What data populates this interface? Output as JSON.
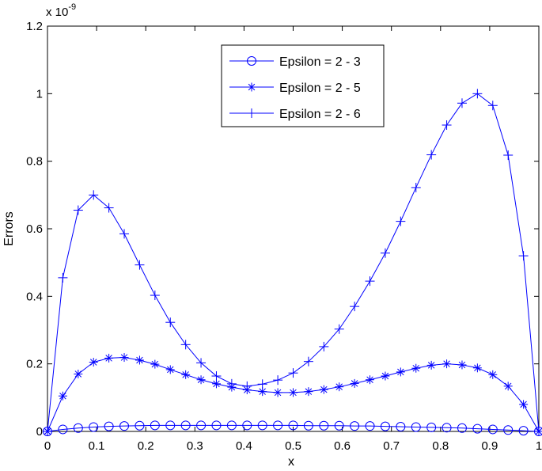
{
  "chart_data": {
    "type": "line",
    "title": "",
    "xlabel": "x",
    "ylabel": "Errors",
    "y_exponent_label": "x 10",
    "y_exponent_power": "-9",
    "xlim": [
      0,
      1
    ],
    "ylim": [
      0,
      1.2
    ],
    "x_ticks": [
      "0",
      "0.1",
      "0.2",
      "0.3",
      "0.4",
      "0.5",
      "0.6",
      "0.7",
      "0.8",
      "0.9",
      "1"
    ],
    "y_ticks": [
      "0",
      "0.2",
      "0.4",
      "0.6",
      "0.8",
      "1",
      "1.2"
    ],
    "legend_position": "top-center",
    "line_color": "#0000ff",
    "x": [
      0,
      0.03125,
      0.0625,
      0.09375,
      0.125,
      0.15625,
      0.1875,
      0.21875,
      0.25,
      0.28125,
      0.3125,
      0.34375,
      0.375,
      0.40625,
      0.4375,
      0.46875,
      0.5,
      0.53125,
      0.5625,
      0.59375,
      0.625,
      0.65625,
      0.6875,
      0.71875,
      0.75,
      0.78125,
      0.8125,
      0.84375,
      0.875,
      0.90625,
      0.9375,
      0.96875,
      1
    ],
    "series": [
      {
        "name": "Epsilon = 2 - 3",
        "marker": "circle",
        "values": [
          0,
          0.006,
          0.01,
          0.013,
          0.015,
          0.016,
          0.017,
          0.018,
          0.018,
          0.018,
          0.018,
          0.018,
          0.018,
          0.018,
          0.018,
          0.018,
          0.018,
          0.017,
          0.017,
          0.017,
          0.016,
          0.016,
          0.015,
          0.014,
          0.013,
          0.012,
          0.011,
          0.01,
          0.008,
          0.006,
          0.004,
          0.002,
          0
        ]
      },
      {
        "name": "Epsilon = 2 - 5",
        "marker": "star",
        "values": [
          0,
          0.105,
          0.17,
          0.205,
          0.217,
          0.219,
          0.211,
          0.199,
          0.183,
          0.168,
          0.153,
          0.141,
          0.131,
          0.123,
          0.118,
          0.115,
          0.115,
          0.118,
          0.124,
          0.132,
          0.142,
          0.153,
          0.164,
          0.176,
          0.187,
          0.196,
          0.2,
          0.197,
          0.188,
          0.168,
          0.134,
          0.08,
          0
        ]
      },
      {
        "name": "Epsilon = 2 - 6",
        "marker": "plus",
        "values": [
          0,
          0.455,
          0.655,
          0.7,
          0.662,
          0.585,
          0.493,
          0.403,
          0.323,
          0.257,
          0.203,
          0.164,
          0.141,
          0.134,
          0.14,
          0.152,
          0.173,
          0.207,
          0.251,
          0.303,
          0.37,
          0.445,
          0.528,
          0.622,
          0.722,
          0.819,
          0.907,
          0.972,
          1.0,
          0.965,
          0.818,
          0.52,
          0
        ]
      }
    ]
  }
}
